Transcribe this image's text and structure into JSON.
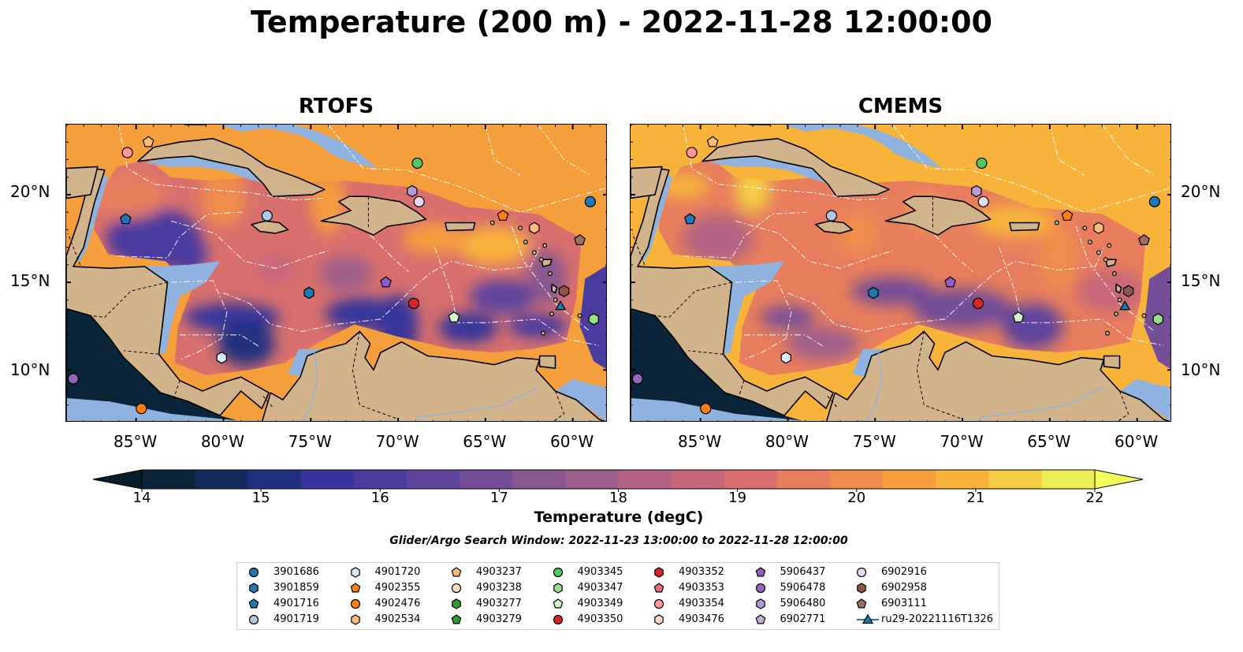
{
  "title": "Temperature (200 m) - 2022-11-28 12:00:00",
  "panels": [
    {
      "title": "RTOFS",
      "palette": "rtofs"
    },
    {
      "title": "CMEMS",
      "palette": "cmems"
    }
  ],
  "map_extent": {
    "lon_min": -89,
    "lon_max": -58,
    "lat_min": 7,
    "lat_max": 24
  },
  "lat_ticks": [
    {
      "value": 20,
      "label": "20°N"
    },
    {
      "value": 15,
      "label": "15°N"
    },
    {
      "value": 10,
      "label": "10°N"
    }
  ],
  "lon_ticks": [
    {
      "value": -85,
      "label": "85°W"
    },
    {
      "value": -80,
      "label": "80°W"
    },
    {
      "value": -75,
      "label": "75°W"
    },
    {
      "value": -70,
      "label": "70°W"
    },
    {
      "value": -65,
      "label": "65°W"
    },
    {
      "value": -60,
      "label": "60°W"
    }
  ],
  "colorbar": {
    "label": "Temperature (degC)",
    "min": 14,
    "max": 22,
    "step": 0.5,
    "ticks": [
      "14",
      "15",
      "16",
      "17",
      "18",
      "19",
      "20",
      "21",
      "22"
    ],
    "colors": [
      "#0a2539",
      "#122b5c",
      "#20307f",
      "#34349a",
      "#4a3b9f",
      "#5e449c",
      "#734e97",
      "#885791",
      "#9d5e8b",
      "#b26383",
      "#c7687a",
      "#d9706d",
      "#e77d5d",
      "#f08c4b",
      "#f59e3c",
      "#f8b43a",
      "#f4cc44",
      "#ecee56"
    ],
    "under_color": "#061c2b",
    "over_color": "#f2ff5a"
  },
  "colors": {
    "land": "#d2b48c",
    "shelf": "#8fb2df",
    "deep_pacific": "#0a2539",
    "eez": "#ffffff"
  },
  "search_window": "Glider/Argo Search Window: 2022-11-23 13:00:00 to 2022-11-28 12:00:00",
  "legend": [
    {
      "id": "3901686",
      "marker": "circle",
      "color": "#1f77b4"
    },
    {
      "id": "3901859",
      "marker": "hexagon",
      "color": "#1f77b4"
    },
    {
      "id": "4901716",
      "marker": "pentagon",
      "color": "#1f77b4"
    },
    {
      "id": "4901719",
      "marker": "circle",
      "color": "#aec7e8"
    },
    {
      "id": "4901720",
      "marker": "hexagon",
      "color": "#dbe8f7"
    },
    {
      "id": "4902355",
      "marker": "pentagon",
      "color": "#ff7f0e"
    },
    {
      "id": "4902476",
      "marker": "circle",
      "color": "#ff7f0e"
    },
    {
      "id": "4902534",
      "marker": "hexagon",
      "color": "#ffbb78"
    },
    {
      "id": "4903237",
      "marker": "pentagon",
      "color": "#ffbb78"
    },
    {
      "id": "4903238",
      "marker": "circle",
      "color": "#ffe0c0"
    },
    {
      "id": "4903277",
      "marker": "hexagon",
      "color": "#2ca02c"
    },
    {
      "id": "4903279",
      "marker": "pentagon",
      "color": "#2ca02c"
    },
    {
      "id": "4903345",
      "marker": "circle",
      "color": "#57c457"
    },
    {
      "id": "4903347",
      "marker": "hexagon",
      "color": "#98df8a"
    },
    {
      "id": "4903349",
      "marker": "pentagon",
      "color": "#d4f5cc"
    },
    {
      "id": "4903350",
      "marker": "circle",
      "color": "#d62728"
    },
    {
      "id": "4903352",
      "marker": "hexagon",
      "color": "#d62728"
    },
    {
      "id": "4903353",
      "marker": "pentagon",
      "color": "#e8707a"
    },
    {
      "id": "4903354",
      "marker": "circle",
      "color": "#ff9896"
    },
    {
      "id": "4903476",
      "marker": "hexagon",
      "color": "#ffd2cf"
    },
    {
      "id": "5906437",
      "marker": "pentagon",
      "color": "#8c5bc4"
    },
    {
      "id": "5906478",
      "marker": "circle",
      "color": "#9467bd"
    },
    {
      "id": "5906480",
      "marker": "hexagon",
      "color": "#b99ad8"
    },
    {
      "id": "6902771",
      "marker": "pentagon",
      "color": "#c5b0d5"
    },
    {
      "id": "6902916",
      "marker": "circle",
      "color": "#e9d8f5"
    },
    {
      "id": "6902958",
      "marker": "hexagon",
      "color": "#8c564b"
    },
    {
      "id": "6903111",
      "marker": "pentagon",
      "color": "#a06e5e"
    },
    {
      "id": "ru29-20221116T1326",
      "marker": "triangle-line",
      "color": "#1f77b4"
    }
  ],
  "floats": [
    {
      "id": "6903111",
      "lon": -59.6,
      "lat": 17.4
    },
    {
      "id": "6902916",
      "lon": -68.8,
      "lat": 19.6
    },
    {
      "id": "4903237",
      "lon": -84.3,
      "lat": 23.0
    },
    {
      "id": "4903354",
      "lon": -85.5,
      "lat": 22.4
    },
    {
      "id": "4903345",
      "lon": -68.9,
      "lat": 21.8
    },
    {
      "id": "5906480",
      "lon": -69.2,
      "lat": 20.2
    },
    {
      "id": "3901686",
      "lon": -59.0,
      "lat": 19.6
    },
    {
      "id": "4902355",
      "lon": -64.0,
      "lat": 18.8
    },
    {
      "id": "4901719",
      "lon": -77.5,
      "lat": 18.8
    },
    {
      "id": "4901716",
      "lon": -85.6,
      "lat": 18.6
    },
    {
      "id": "4902534",
      "lon": -62.2,
      "lat": 18.1
    },
    {
      "id": "5906437",
      "lon": -70.7,
      "lat": 15.0
    },
    {
      "id": "3901859",
      "lon": -75.1,
      "lat": 14.4
    },
    {
      "id": "6902958",
      "lon": -60.5,
      "lat": 14.5
    },
    {
      "id": "4903350",
      "lon": -69.1,
      "lat": 13.8
    },
    {
      "id": "ru29-20221116T1326",
      "lon": -60.7,
      "lat": 13.6
    },
    {
      "id": "4903349",
      "lon": -66.8,
      "lat": 13.0
    },
    {
      "id": "4903347",
      "lon": -58.8,
      "lat": 12.9
    },
    {
      "id": "4901720",
      "lon": -80.1,
      "lat": 10.7
    },
    {
      "id": "5906478",
      "lon": -88.6,
      "lat": 9.5
    },
    {
      "id": "4902476",
      "lon": -84.7,
      "lat": 7.8
    }
  ]
}
